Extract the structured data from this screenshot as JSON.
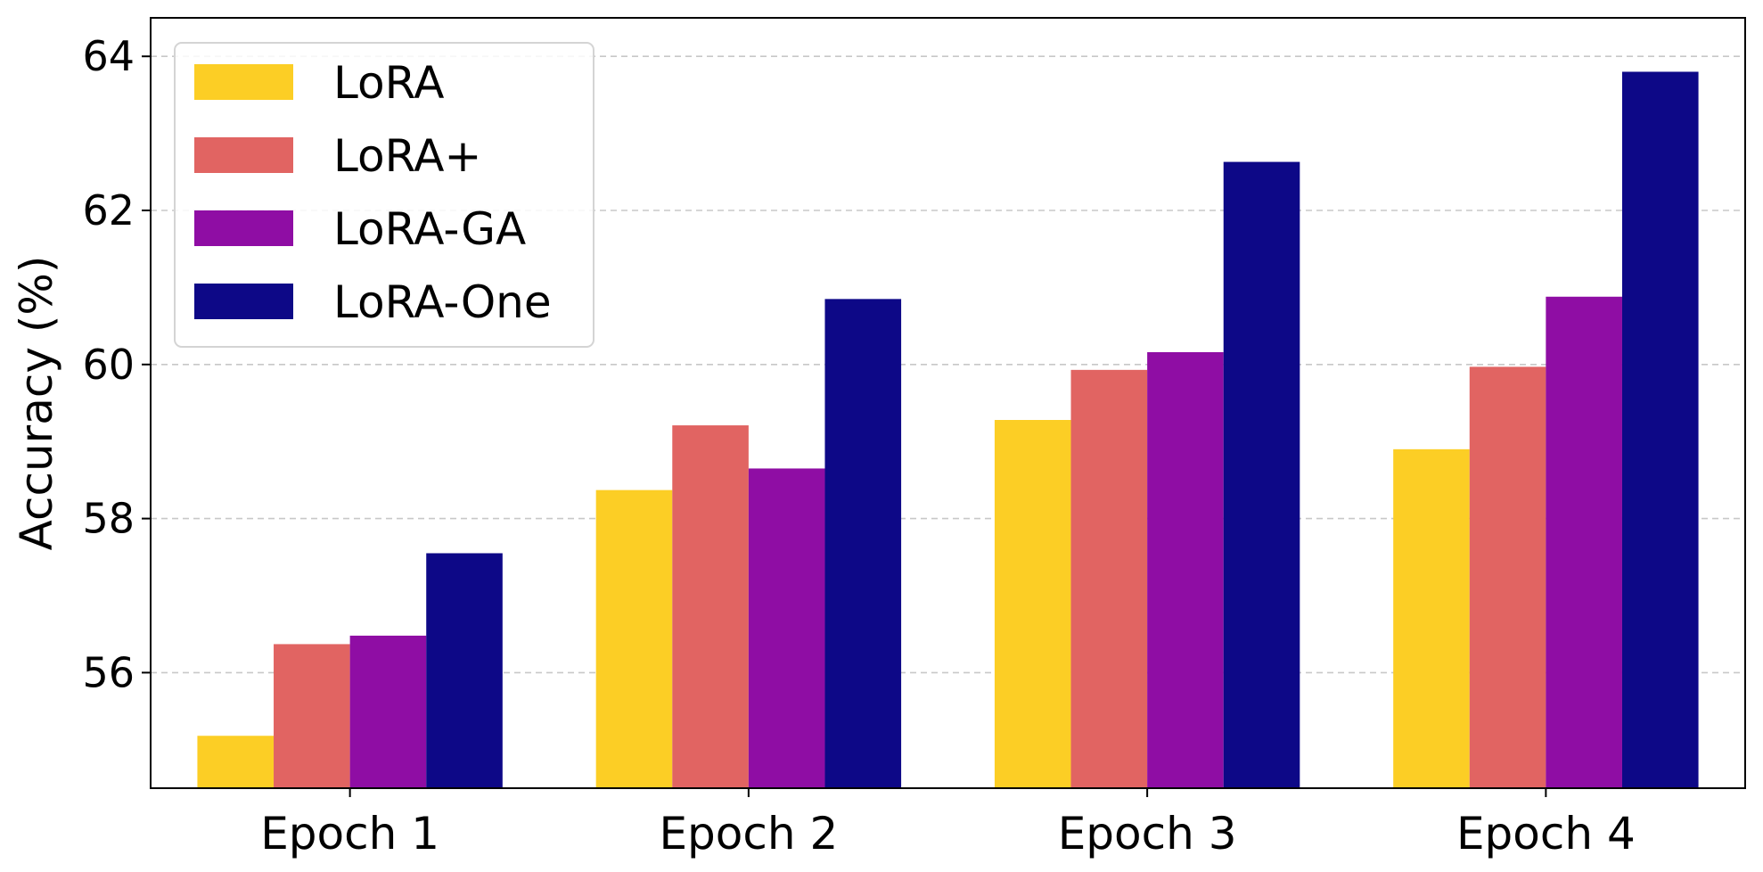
{
  "chart_data": {
    "type": "bar",
    "title": "",
    "xlabel": "",
    "ylabel": "Accuracy (%)",
    "categories": [
      "Epoch 1",
      "Epoch 2",
      "Epoch 3",
      "Epoch 4"
    ],
    "ylim": [
      54.5,
      64.5
    ],
    "yticks": [
      "56",
      "58",
      "60",
      "62",
      "64"
    ],
    "grid": "y-dashed",
    "legend_position": "top-left",
    "series": [
      {
        "name": "LoRA",
        "color": "#fcce25",
        "values": [
          55.18,
          58.37,
          59.28,
          58.9
        ]
      },
      {
        "name": "LoRA+",
        "color": "#e16462",
        "values": [
          56.37,
          59.21,
          59.93,
          59.97
        ]
      },
      {
        "name": "LoRA-GA",
        "color": "#8f0da4",
        "values": [
          56.48,
          58.65,
          60.16,
          60.88
        ]
      },
      {
        "name": "LoRA-One",
        "color": "#0d0887",
        "values": [
          57.55,
          60.85,
          62.63,
          63.8
        ]
      }
    ]
  }
}
